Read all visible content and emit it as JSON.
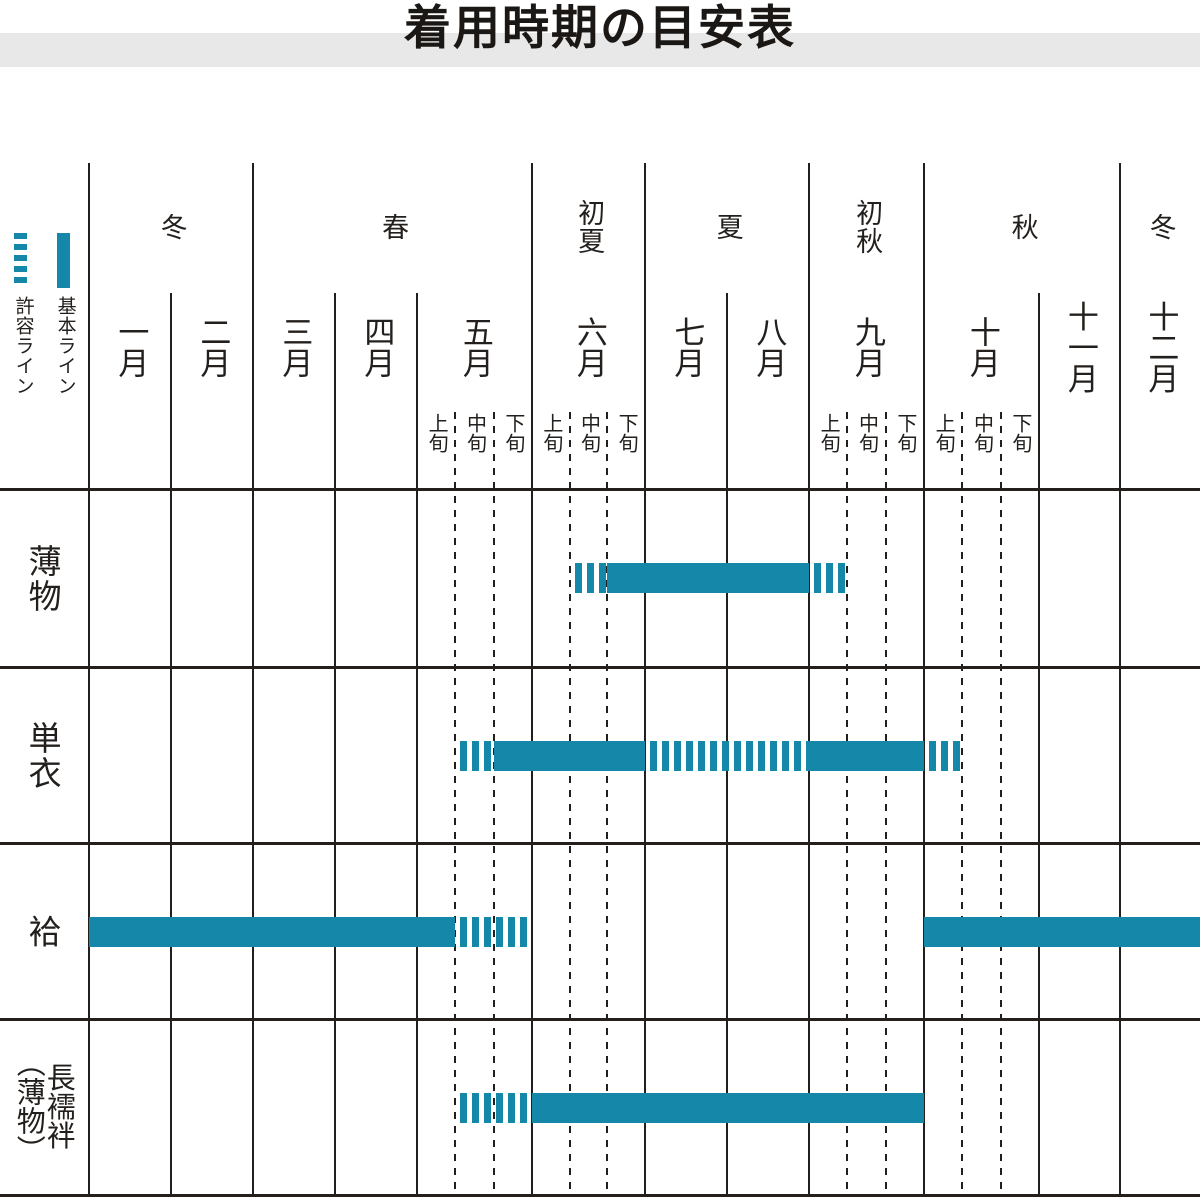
{
  "title": "着用時期の目安表",
  "legend": {
    "basic_label": "基本ライン",
    "allow_label": "許容ライン"
  },
  "colors": {
    "accent": "#1588a9",
    "band": "#e8e8e8",
    "line": "#231f1c"
  },
  "chart_data": {
    "type": "gantt",
    "unit": "month-thirds (1 month = 3 units, t=0 is Jan 1, t=36 is Dec 31)",
    "seasons": [
      {
        "label": "冬",
        "from_month": 1,
        "to_month": 2
      },
      {
        "label": "春",
        "from_month": 3,
        "to_month": 5
      },
      {
        "label": "初夏",
        "from_month": 6,
        "to_month": 6
      },
      {
        "label": "夏",
        "from_month": 7,
        "to_month": 8
      },
      {
        "label": "初秋",
        "from_month": 9,
        "to_month": 9
      },
      {
        "label": "秋",
        "from_month": 10,
        "to_month": 11
      },
      {
        "label": "冬",
        "from_month": 12,
        "to_month": 12
      }
    ],
    "months": [
      {
        "label": "一月"
      },
      {
        "label": "二月"
      },
      {
        "label": "三月"
      },
      {
        "label": "四月"
      },
      {
        "label": "五月",
        "subdivided": true
      },
      {
        "label": "六月",
        "subdivided": true
      },
      {
        "label": "七月"
      },
      {
        "label": "八月"
      },
      {
        "label": "九月",
        "subdivided": true
      },
      {
        "label": "十月",
        "subdivided": true
      },
      {
        "label": "十一月"
      },
      {
        "label": "十二月"
      }
    ],
    "jun_labels": [
      "上旬",
      "中旬",
      "下旬"
    ],
    "series_styles": {
      "basic": "基本ライン",
      "allow": "許容ライン"
    },
    "rows": [
      {
        "label": "薄物",
        "segments": [
          {
            "style": "allow",
            "start": 16,
            "end": 17,
            "period": "6月中旬"
          },
          {
            "style": "basic",
            "start": 17,
            "end": 24,
            "period": "6月下旬〜8月末"
          },
          {
            "style": "allow",
            "start": 24,
            "end": 25,
            "period": "9月上旬"
          }
        ]
      },
      {
        "label": "単衣",
        "segments": [
          {
            "style": "allow",
            "start": 13,
            "end": 14,
            "period": "5月中旬"
          },
          {
            "style": "basic",
            "start": 14,
            "end": 18,
            "period": "5月下旬〜6月末"
          },
          {
            "style": "allow",
            "start": 18,
            "end": 24,
            "period": "7月〜8月"
          },
          {
            "style": "basic",
            "start": 24,
            "end": 27,
            "period": "9月"
          },
          {
            "style": "allow",
            "start": 27,
            "end": 28,
            "period": "10月上旬"
          }
        ]
      },
      {
        "label": "袷",
        "segments": [
          {
            "style": "basic",
            "start": 0,
            "end": 13,
            "period": "1月〜5月上旬"
          },
          {
            "style": "allow",
            "start": 13,
            "end": 15,
            "period": "5月中旬〜5月下旬"
          },
          {
            "style": "basic",
            "start": 27,
            "end": 36,
            "period": "10月〜12月"
          }
        ]
      },
      {
        "label": "長襦袢",
        "label_paren": "（薄物）",
        "segments": [
          {
            "style": "allow",
            "start": 13,
            "end": 15,
            "period": "5月中旬〜5月下旬"
          },
          {
            "style": "basic",
            "start": 15,
            "end": 27,
            "period": "6月〜9月末"
          }
        ]
      }
    ]
  }
}
